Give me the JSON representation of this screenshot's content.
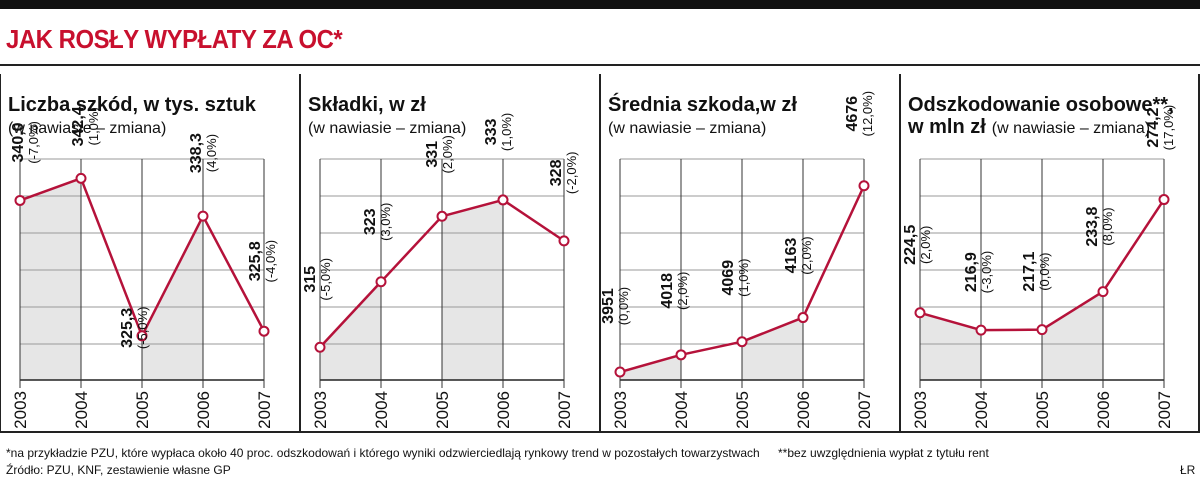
{
  "header": {
    "title": "JAK ROSŁY WYPŁATY ZA OC*"
  },
  "chart_data": [
    {
      "type": "line",
      "title": "Liczba szkód, w tys. sztuk",
      "subtitle": "(w nawiasie – zmiana)",
      "categories": [
        "2003",
        "2004",
        "2005",
        "2006",
        "2007"
      ],
      "values": [
        340.0,
        342.4,
        325.3,
        338.3,
        325.8
      ],
      "value_labels": [
        "340,0",
        "342,4",
        "325,3",
        "338,3",
        "325,8"
      ],
      "change_labels": [
        "(-7,0%)",
        "(1,0%)",
        "(-5,0%)",
        "(4,0%)",
        "(-4,0%)"
      ],
      "shaded_bands": [
        [
          0,
          1
        ],
        [
          2,
          3
        ]
      ],
      "ylim": [
        320.5,
        344.5
      ],
      "colors": {
        "line": "#b5123a",
        "fill": "#e6e6e6"
      }
    },
    {
      "type": "line",
      "title": "Składki, w zł",
      "subtitle": "(w nawiasie – zmiana)",
      "categories": [
        "2003",
        "2004",
        "2005",
        "2006",
        "2007"
      ],
      "values": [
        315,
        323,
        331,
        333,
        328
      ],
      "value_labels": [
        "315",
        "323",
        "331",
        "333",
        "328"
      ],
      "change_labels": [
        "(-5,0%)",
        "(3,0%)",
        "(2,0%)",
        "(1,0%)",
        "(-2,0%)"
      ],
      "shaded_bands": [
        [
          0,
          1
        ],
        [
          2,
          3
        ]
      ],
      "ylim": [
        311,
        338
      ],
      "colors": {
        "line": "#b5123a",
        "fill": "#e6e6e6"
      }
    },
    {
      "type": "line",
      "title": "Średnia szkoda,w zł",
      "subtitle": "(w nawiasie – zmiana)",
      "categories": [
        "2003",
        "2004",
        "2005",
        "2006",
        "2007"
      ],
      "values": [
        3951,
        4018,
        4069,
        4163,
        4676
      ],
      "value_labels": [
        "3951",
        "4018",
        "4069",
        "4163",
        "4676"
      ],
      "change_labels": [
        "(0,0%)",
        "(2,0%)",
        "(1,0%)",
        "(2,0%)",
        "(12,0%)"
      ],
      "shaded_bands": [
        [
          0,
          1
        ],
        [
          2,
          3
        ]
      ],
      "ylim": [
        3920,
        4780
      ],
      "colors": {
        "line": "#b5123a",
        "fill": "#e6e6e6"
      }
    },
    {
      "type": "line",
      "title": "Odszkodowanie osobowe**,",
      "title_line2": "w mln zł",
      "subtitle": "(w nawiasie – zmiana)",
      "categories": [
        "2003",
        "2004",
        "2005",
        "2006",
        "2007"
      ],
      "values": [
        224.5,
        216.9,
        217.1,
        233.8,
        274.2
      ],
      "value_labels": [
        "224,5",
        "216,9",
        "217,1",
        "233,8",
        "274,2"
      ],
      "change_labels": [
        "(2,0%)",
        "(-3,0%)",
        "(0,0%)",
        "(8,0%)",
        "(17,0%)"
      ],
      "shaded_bands": [
        [
          0,
          1
        ],
        [
          2,
          3
        ]
      ],
      "ylim": [
        195,
        292
      ],
      "colors": {
        "line": "#b5123a",
        "fill": "#e6e6e6"
      }
    }
  ],
  "footer": {
    "note_pzu": "*na przykładzie PZU, które wypłaca około 40 proc. odszkodowań i którego wyniki odzwierciedlają rynkowy trend w pozostałych towarzystwach",
    "note_rent": "**bez uwzględnienia wypłat z tytułu rent",
    "source": "Źródło: PZU, KNF, zestawienie własne GP",
    "author": "ŁR"
  }
}
